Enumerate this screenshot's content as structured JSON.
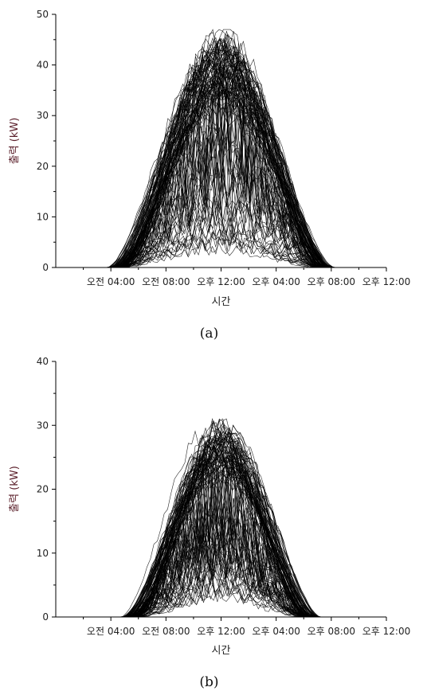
{
  "chart_data": [
    {
      "type": "line",
      "caption": "(a)",
      "xlabel": "시간",
      "ylabel": "출력 (kW)",
      "ylim": [
        0,
        50
      ],
      "yticks": [
        0,
        10,
        20,
        30,
        40,
        50
      ],
      "xlim": [
        0,
        24
      ],
      "xticks": [
        {
          "value": 4,
          "label": "오전 04:00"
        },
        {
          "value": 8,
          "label": "오전 08:00"
        },
        {
          "value": 12,
          "label": "오후 12:00"
        },
        {
          "value": 16,
          "label": "오후 04:00"
        },
        {
          "value": 20,
          "label": "오후 08:00"
        },
        {
          "value": 24,
          "label": "오후 12:00"
        }
      ],
      "series_count": 120,
      "peak_max": 47,
      "sunrise_hour": 3,
      "sunset_hour": 21,
      "grid": false
    },
    {
      "type": "line",
      "caption": "(b)",
      "xlabel": "시간",
      "ylabel": "출력 (kW)",
      "ylim": [
        0,
        40
      ],
      "yticks": [
        0,
        10,
        20,
        30,
        40
      ],
      "xlim": [
        0,
        24
      ],
      "xticks": [
        {
          "value": 4,
          "label": "오전 04:00"
        },
        {
          "value": 8,
          "label": "오전 08:00"
        },
        {
          "value": 12,
          "label": "오후 12:00"
        },
        {
          "value": 16,
          "label": "오후 04:00"
        },
        {
          "value": 20,
          "label": "오후 08:00"
        },
        {
          "value": 24,
          "label": "오후 12:00"
        }
      ],
      "series_count": 120,
      "peak_max": 31,
      "sunrise_hour": 4,
      "sunset_hour": 20,
      "grid": false
    }
  ]
}
